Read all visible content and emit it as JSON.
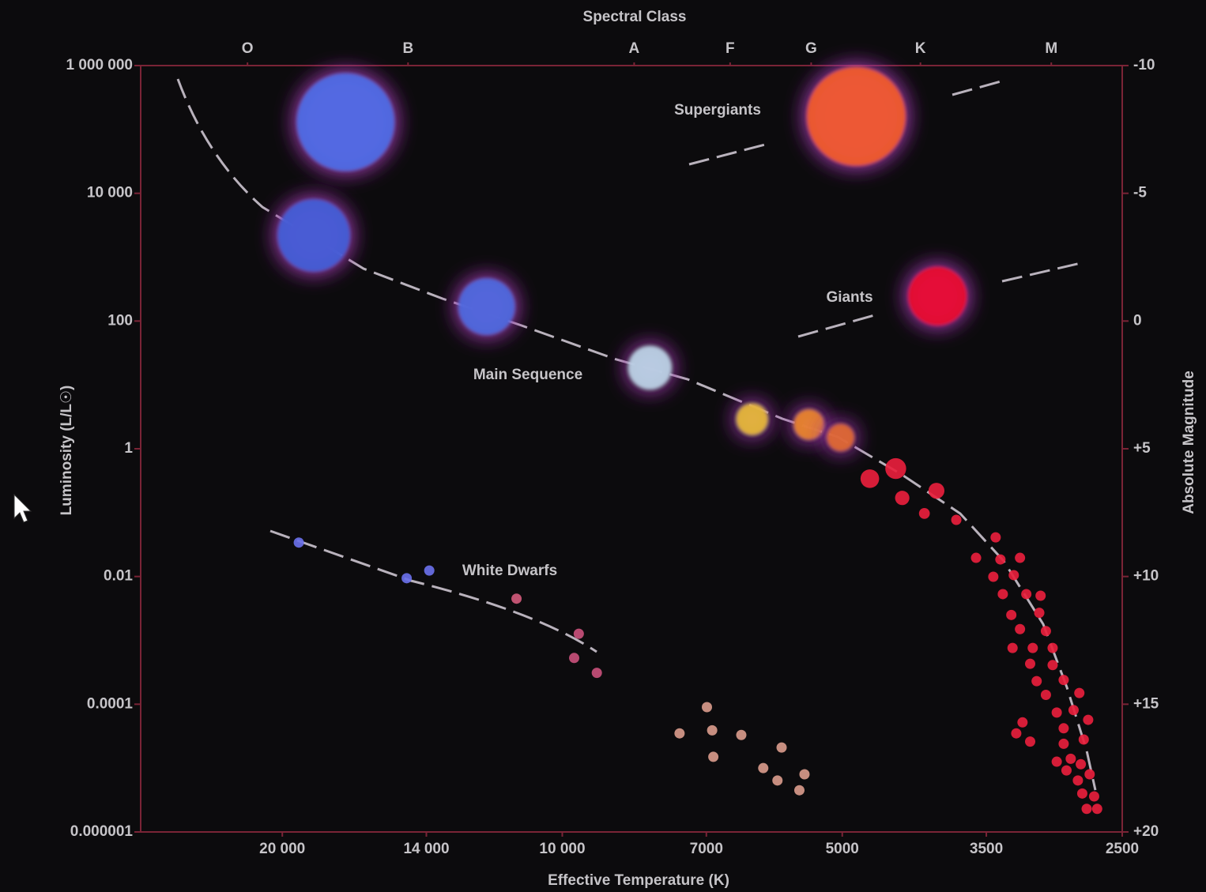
{
  "chart_data": {
    "type": "scatter",
    "title": "Spectral Class",
    "xlabel": "Effective Temperature (K)",
    "ylabel": "Luminosity (L/L☉)",
    "y2label": "Absolute Magnitude",
    "xscale": "log",
    "yscale": "log",
    "xlim": [
      28400,
      2500
    ],
    "xticks": [
      {
        "value": 20000,
        "label": "20 000"
      },
      {
        "value": 14000,
        "label": "14 000"
      },
      {
        "value": 10000,
        "label": "10 000"
      },
      7000,
      5000,
      3500,
      2500
    ],
    "x2ticks": [
      {
        "value": 21800,
        "label": "O"
      },
      {
        "value": 14650,
        "label": "B"
      },
      {
        "value": 8370,
        "label": "A"
      },
      {
        "value": 6600,
        "label": "F"
      },
      {
        "value": 5400,
        "label": "G"
      },
      {
        "value": 4120,
        "label": "K"
      },
      {
        "value": 2980,
        "label": "M"
      }
    ],
    "ylim": [
      1e-06,
      1000000
    ],
    "yticks": [
      {
        "value": 1000000,
        "label": "1 000 000"
      },
      {
        "value": 10000,
        "label": "10 000"
      },
      100,
      1,
      0.01,
      0.0001,
      1e-06
    ],
    "y2lim": [
      20,
      -10
    ],
    "y2ticks": [
      -10,
      -5,
      0,
      {
        "value": 5,
        "label": "+5"
      },
      {
        "value": 10,
        "label": "+10"
      },
      {
        "value": 15,
        "label": "+15"
      },
      {
        "value": 20,
        "label": "+20"
      }
    ],
    "grid": false,
    "series": [
      {
        "name": "Supergiants",
        "x": [
          17100,
          4830
        ],
        "values": [
          130000,
          160000
        ],
        "colors": [
          "#4a6ee6",
          "#f25c16"
        ]
      },
      {
        "name": "Giants",
        "x": [
          3950
        ],
        "values": [
          245
        ],
        "colors": [
          "#ea1020"
        ]
      },
      {
        "name": "Main Sequence",
        "x": [
          18500,
          12060,
          8050,
          6250,
          5430,
          5020,
          4670,
          4380,
          4310,
          4080,
          3960,
          3770,
          3420,
          3590,
          3380,
          3220,
          3440,
          3270,
          3360,
          3170,
          3060,
          3290,
          3070,
          3220,
          3020,
          3280,
          3120,
          2970,
          3140,
          2970,
          3090,
          2890,
          3020,
          2780,
          2940,
          2820,
          2720,
          3200,
          3250,
          3140,
          2890,
          2750,
          2890,
          2940,
          2840,
          2770,
          2870,
          2790,
          2710,
          2760,
          2680,
          2730,
          2660
        ],
        "values": [
          2190,
          168,
          18.6,
          2.9,
          2.4,
          1.5,
          0.34,
          0.49,
          0.17,
          0.097,
          0.22,
          0.077,
          0.041,
          0.0196,
          0.0185,
          0.0196,
          0.0099,
          0.0105,
          0.0053,
          0.0053,
          0.005,
          0.0025,
          0.0027,
          0.0015,
          0.0014,
          0.00076,
          0.00076,
          0.00076,
          0.00043,
          0.00041,
          0.00023,
          0.00024,
          0.00014,
          0.00015,
          7.4e-05,
          8.1e-05,
          5.7e-05,
          5.2e-05,
          3.5e-05,
          2.6e-05,
          4.2e-05,
          2.8e-05,
          2.4e-05,
          1.26e-05,
          1.4e-05,
          1.15e-05,
          9.2e-06,
          6.4e-06,
          8e-06,
          4e-06,
          3.6e-06,
          2.3e-06,
          2.3e-06
        ],
        "colors": [
          "#3d5ed8",
          "#4a6ae0",
          "#bcd2e6",
          "#e8b830",
          "#ec8420",
          "#e26a28",
          "#e8203c",
          "#e8203c",
          "#e8203c",
          "#e8203c",
          "#e8203c",
          "#e8203c",
          "#e8203c",
          "#e8203c",
          "#e8203c",
          "#e8203c",
          "#e8203c",
          "#e8203c",
          "#e8203c",
          "#e8203c",
          "#e8203c",
          "#e8203c",
          "#e8203c",
          "#e8203c",
          "#e8203c",
          "#e8203c",
          "#e8203c",
          "#e8203c",
          "#e8203c",
          "#e8203c",
          "#e8203c",
          "#e8203c",
          "#e8203c",
          "#e8203c",
          "#e8203c",
          "#e8203c",
          "#e8203c",
          "#e8203c",
          "#e8203c",
          "#e8203c",
          "#e8203c",
          "#e8203c",
          "#e8203c",
          "#e8203c",
          "#e8203c",
          "#e8203c",
          "#e8203c",
          "#e8203c",
          "#e8203c",
          "#e8203c",
          "#e8203c",
          "#e8203c",
          "#e8203c"
        ]
      },
      {
        "name": "White Dwarfs",
        "x": [
          19200,
          14700,
          13900,
          11200,
          9600,
          9710,
          9180
        ],
        "values": [
          0.034,
          0.0094,
          0.0124,
          0.0045,
          0.00127,
          0.00053,
          0.00031
        ],
        "colors": [
          "#6a70e8",
          "#6a70e8",
          "#6a70e8",
          "#d05a7a",
          "#c8507a",
          "#c8507a",
          "#c8507a"
        ]
      },
      {
        "x": [
          6990,
          7480,
          6900,
          6420,
          6880,
          5810,
          6080,
          5870,
          5490,
          5560
        ],
        "values": [
          9e-05,
          3.5e-05,
          3.9e-05,
          3.3e-05,
          1.5e-05,
          2.1e-05,
          1e-05,
          6.4e-06,
          8e-06,
          4.5e-06
        ],
        "colors": [
          "#d89a8a",
          "#d89a8a",
          "#d89a8a",
          "#d89a8a",
          "#d89a8a",
          "#d89a8a",
          "#d89a8a",
          "#d89a8a",
          "#d89a8a",
          "#d89a8a"
        ]
      }
    ]
  }
}
